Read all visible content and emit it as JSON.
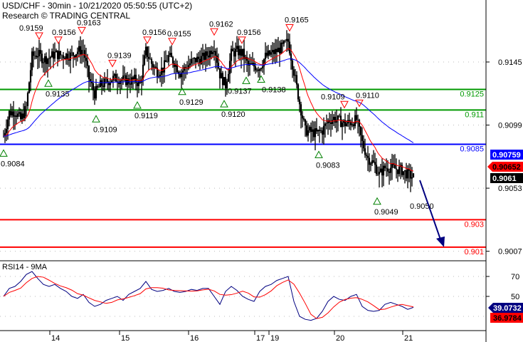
{
  "header": {
    "title": "USD/CHF - 30min - 10/21/2020 05:50:55 (UTC+2)",
    "subtitle": "Research © TRADING CENTRAL"
  },
  "chart_data": [
    {
      "type": "candlestick",
      "name": "USD/CHF",
      "ylim": [
        0.8989,
        0.919
      ],
      "y_ticks": [
        "0.9145",
        "0.9099",
        "0.9053",
        "0.9007"
      ],
      "x_ticks": [
        "14",
        "15",
        "16",
        "17",
        "19",
        "20",
        "21"
      ],
      "price_path": [
        0.9091,
        0.9108,
        0.9109,
        0.9103,
        0.9112,
        0.9149,
        0.9151,
        0.9147,
        0.9148,
        0.9151,
        0.915,
        0.915,
        0.915,
        0.9153,
        0.9154,
        0.9133,
        0.9122,
        0.9128,
        0.913,
        0.9133,
        0.9133,
        0.9132,
        0.9131,
        0.9132,
        0.9129,
        0.9153,
        0.9144,
        0.9138,
        0.914,
        0.9149,
        0.9145,
        0.9137,
        0.9141,
        0.9145,
        0.9147,
        0.9148,
        0.9151,
        0.9157,
        0.9136,
        0.9128,
        0.9151,
        0.9153,
        0.9151,
        0.9142,
        0.9142,
        0.9141,
        0.9149,
        0.9151,
        0.9153,
        0.9156,
        0.916,
        0.9138,
        0.9115,
        0.9095,
        0.9094,
        0.9093,
        0.9095,
        0.9102,
        0.9104,
        0.9102,
        0.91,
        0.9101,
        0.9103,
        0.9086,
        0.9075,
        0.9071,
        0.9063,
        0.9068,
        0.9068,
        0.9067,
        0.9066,
        0.9063,
        0.9061
      ],
      "moving_averages": [
        {
          "color": "#ff0000"
        },
        {
          "color": "#0000ff"
        }
      ],
      "levels": [
        {
          "price": 0.9125,
          "label": "0.9125",
          "color": "#009900"
        },
        {
          "price": 0.911,
          "label": "0.911",
          "color": "#009900"
        },
        {
          "price": 0.9085,
          "label": "0.9085",
          "color": "#0000ff"
        },
        {
          "price": 0.903,
          "label": "0.903",
          "color": "#ff0000"
        },
        {
          "price": 0.901,
          "label": "0.901",
          "color": "#ff0000"
        }
      ],
      "pivots": [
        {
          "kind": "low",
          "label": "0.9084"
        },
        {
          "kind": "high",
          "label": "0.9159"
        },
        {
          "kind": "low",
          "label": "0.9135"
        },
        {
          "kind": "high",
          "label": "0.9156"
        },
        {
          "kind": "high",
          "label": "0.9163"
        },
        {
          "kind": "low",
          "label": "0.9109"
        },
        {
          "kind": "high",
          "label": "0.9139"
        },
        {
          "kind": "low",
          "label": "0.9119"
        },
        {
          "kind": "high",
          "label": "0.9156"
        },
        {
          "kind": "high",
          "label": "0.9155"
        },
        {
          "kind": "low",
          "label": "0.9129"
        },
        {
          "kind": "high",
          "label": "0.9162"
        },
        {
          "kind": "low",
          "label": "0.9120"
        },
        {
          "kind": "high",
          "label": "0.9156"
        },
        {
          "kind": "low",
          "label": "0.9137"
        },
        {
          "kind": "low",
          "label": "0.9138"
        },
        {
          "kind": "high",
          "label": "0.9165"
        },
        {
          "kind": "low",
          "label": "0.9083"
        },
        {
          "kind": "high",
          "label": "0.9109"
        },
        {
          "kind": "high",
          "label": "0.9110"
        },
        {
          "kind": "low",
          "label": "0.9049"
        },
        {
          "kind": "none",
          "label": "0.9050"
        }
      ],
      "forecast": {
        "direction": "down",
        "target": 0.901,
        "color": "#000080"
      },
      "badges": [
        {
          "label": "0.90759",
          "bg": "#0000ff",
          "fg": "#ffffff"
        },
        {
          "label": "0.90652",
          "bg": "#ff0000",
          "fg": "#000000"
        },
        {
          "label": "0.9061",
          "bg": "#000000",
          "fg": "#ffffff"
        }
      ]
    },
    {
      "type": "line",
      "title": "RSI14 - 9MA",
      "ylim": [
        20,
        82
      ],
      "y_ticks": [
        "70",
        "50"
      ],
      "series": [
        {
          "name": "RSI14",
          "color": "#000080",
          "values": [
            50,
            58,
            60,
            65,
            72,
            75,
            68,
            62,
            60,
            62,
            58,
            55,
            50,
            48,
            52,
            44,
            40,
            42,
            46,
            48,
            50,
            46,
            52,
            55,
            58,
            65,
            57,
            55,
            56,
            58,
            55,
            54,
            55,
            57,
            56,
            58,
            58,
            50,
            42,
            55,
            60,
            56,
            50,
            47,
            45,
            55,
            60,
            62,
            66,
            68,
            70,
            45,
            30,
            27,
            26,
            28,
            35,
            45,
            50,
            47,
            46,
            50,
            52,
            40,
            36,
            35,
            36,
            42,
            44,
            42,
            40,
            37,
            39
          ]
        },
        {
          "name": "9MA",
          "color": "#ff0000"
        }
      ],
      "badges": [
        {
          "label": "39.0732",
          "bg": "#000080",
          "fg": "#ffffff"
        },
        {
          "label": "36.9784",
          "bg": "#ff0000",
          "fg": "#000000"
        }
      ]
    }
  ]
}
